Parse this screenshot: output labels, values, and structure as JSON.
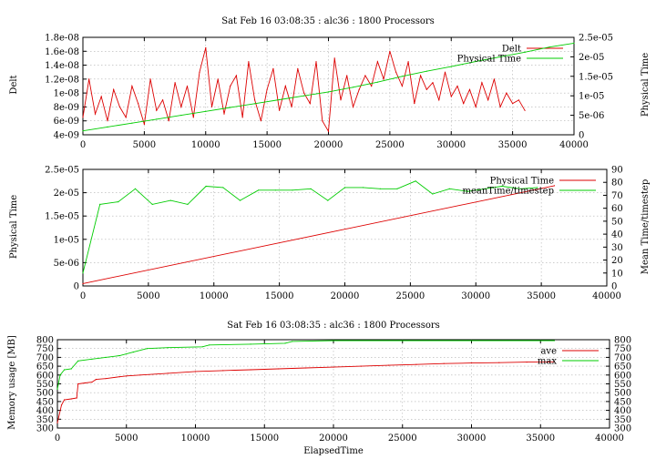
{
  "chart_data": [
    {
      "type": "line",
      "title": "Sat Feb 16 03:08:35 : alc36 : 1800 Processors",
      "ylabel": "Delt",
      "y2label": "Physical Time",
      "xlim": [
        0,
        40000
      ],
      "ylim": [
        4e-09,
        1.8e-08
      ],
      "y2lim": [
        0,
        2.5e-05
      ],
      "xticks": [
        "0",
        "5000",
        "10000",
        "15000",
        "20000",
        "25000",
        "30000",
        "35000",
        "40000"
      ],
      "yticks": [
        "4e-09",
        "6e-09",
        "8e-09",
        "1e-08",
        "1.2e-08",
        "1.4e-08",
        "1.6e-08",
        "1.8e-08"
      ],
      "y2ticks": [
        "0",
        "5e-06",
        "1e-05",
        "1.5e-05",
        "2e-05",
        "2.5e-05"
      ],
      "grid": true,
      "legend": "top-right",
      "colors": {
        "axis1": "#dd0000",
        "axis2": "#00cc00"
      },
      "series": [
        {
          "name": "Delt",
          "axis": "y",
          "color": "#dd0000",
          "x": [
            0,
            500,
            1000,
            1500,
            2000,
            2500,
            3000,
            3500,
            4000,
            4500,
            5000,
            5500,
            6000,
            6500,
            7000,
            7500,
            8000,
            8500,
            9000,
            9500,
            10000,
            10500,
            11000,
            11500,
            12000,
            12500,
            13000,
            13500,
            14000,
            14500,
            15000,
            15500,
            16000,
            16500,
            17000,
            17500,
            18000,
            18500,
            19000,
            19500,
            20000,
            20500,
            21000,
            21500,
            22000,
            22500,
            23000,
            23500,
            24000,
            24500,
            25000,
            25500,
            26000,
            26500,
            27000,
            27500,
            28000,
            28500,
            29000,
            29500,
            30000,
            30500,
            31000,
            31500,
            32000,
            32500,
            33000,
            33500,
            34000,
            34500,
            35000,
            35500,
            36000
          ],
          "y": [
            6.5e-09,
            1.2e-08,
            7e-09,
            9.5e-09,
            6e-09,
            1.05e-08,
            8e-09,
            6.5e-09,
            1.1e-08,
            8.5e-09,
            5.5e-09,
            1.2e-08,
            7.5e-09,
            9e-09,
            6e-09,
            1.15e-08,
            8e-09,
            1.1e-08,
            6.5e-09,
            1.3e-08,
            1.65e-08,
            8e-09,
            1.2e-08,
            7e-09,
            1.1e-08,
            1.25e-08,
            6.5e-09,
            1.45e-08,
            9e-09,
            6e-09,
            1.05e-08,
            1.35e-08,
            7.5e-09,
            1.1e-08,
            8e-09,
            1.35e-08,
            1e-08,
            8.5e-09,
            1.45e-08,
            6e-09,
            4.5e-09,
            1.5e-08,
            9e-09,
            1.25e-08,
            8e-09,
            1.05e-08,
            1.25e-08,
            1.1e-08,
            1.45e-08,
            1.2e-08,
            1.6e-08,
            1.3e-08,
            1.1e-08,
            1.45e-08,
            8.5e-09,
            1.25e-08,
            1.05e-08,
            1.15e-08,
            9e-09,
            1.3e-08,
            9.5e-09,
            1.1e-08,
            8.5e-09,
            1.05e-08,
            8e-09,
            1.15e-08,
            9e-09,
            1.2e-08,
            8e-09,
            1e-08,
            8.5e-09,
            9e-09,
            7.5e-09
          ]
        },
        {
          "name": "Physical Time",
          "axis": "y2",
          "color": "#00cc00",
          "x": [
            0,
            2000,
            4000,
            6000,
            8000,
            10000,
            12000,
            14000,
            16000,
            18000,
            20000,
            22000,
            24000,
            26000,
            28000,
            30000,
            32000,
            34000,
            36000,
            38000,
            40000
          ],
          "y": [
            1e-06,
            2e-06,
            3e-06,
            4e-06,
            5e-06,
            6e-06,
            7e-06,
            8e-06,
            9e-06,
            1e-05,
            1.1e-05,
            1.22e-05,
            1.35e-05,
            1.5e-05,
            1.63e-05,
            1.75e-05,
            1.88e-05,
            2e-05,
            2.12e-05,
            2.25e-05,
            2.35e-05
          ]
        }
      ]
    },
    {
      "type": "line",
      "ylabel": "Physical Time",
      "y2label": "Mean Time/timestep",
      "xlim": [
        0,
        40000
      ],
      "ylim": [
        0,
        2.5e-05
      ],
      "y2lim": [
        0,
        90
      ],
      "xticks": [
        "0",
        "5000",
        "10000",
        "15000",
        "20000",
        "25000",
        "30000",
        "35000",
        "40000"
      ],
      "yticks": [
        "0",
        "5e-06",
        "1e-05",
        "1.5e-05",
        "2e-05",
        "2.5e-05"
      ],
      "y2ticks": [
        "0",
        "10",
        "20",
        "30",
        "40",
        "50",
        "60",
        "70",
        "80",
        "90"
      ],
      "grid": true,
      "legend": "top-right",
      "colors": {
        "axis1": "#dd0000",
        "axis2": "#00cc00"
      },
      "series": [
        {
          "name": "Physical Time",
          "axis": "y",
          "color": "#dd0000",
          "x": [
            0,
            36000
          ],
          "y": [
            5e-07,
            2.15e-05
          ]
        },
        {
          "name": "meanTime/timestep",
          "axis": "y2",
          "color": "#00cc00",
          "x": [
            0,
            1300,
            2700,
            4000,
            5300,
            6700,
            8000,
            9400,
            10700,
            12000,
            13400,
            14700,
            16000,
            17400,
            18700,
            20000,
            21400,
            22700,
            24000,
            25400,
            26700,
            28000,
            29400,
            30700,
            32000,
            33400,
            34700
          ],
          "y": [
            10,
            63,
            65,
            75,
            63,
            66,
            63,
            77,
            76,
            66,
            74,
            74,
            74,
            75,
            66,
            76,
            76,
            75,
            75,
            81,
            71,
            75,
            73,
            75,
            77,
            75,
            76
          ]
        }
      ]
    },
    {
      "type": "line",
      "title": "Sat Feb 16 03:08:35 : alc36 : 1800 Processors",
      "xlabel": "ElapsedTime",
      "ylabel": "Memory usage [MB]",
      "xlim": [
        0,
        40000
      ],
      "ylim": [
        300,
        800
      ],
      "y2lim": [
        300,
        800
      ],
      "xticks": [
        "0",
        "5000",
        "10000",
        "15000",
        "20000",
        "25000",
        "30000",
        "35000",
        "40000"
      ],
      "yticks": [
        "300",
        "350",
        "400",
        "450",
        "500",
        "550",
        "600",
        "650",
        "700",
        "750",
        "800"
      ],
      "y2ticks": [
        "300",
        "350",
        "400",
        "450",
        "500",
        "550",
        "600",
        "650",
        "700",
        "750",
        "800"
      ],
      "grid": true,
      "legend": "top-right",
      "colors": {
        "axis1": "#dd0000",
        "axis2": "#00cc00"
      },
      "series": [
        {
          "name": "ave",
          "axis": "y",
          "color": "#dd0000",
          "x": [
            0,
            300,
            500,
            1000,
            1400,
            1500,
            2000,
            2500,
            2800,
            3500,
            4500,
            5000,
            6000,
            8000,
            10000,
            12000,
            14000,
            16000,
            18000,
            20000,
            22000,
            24000,
            26000,
            28000,
            30000,
            32000,
            34000,
            36000
          ],
          "y": [
            330,
            430,
            460,
            465,
            470,
            550,
            555,
            560,
            575,
            580,
            590,
            595,
            600,
            610,
            620,
            625,
            630,
            635,
            640,
            645,
            650,
            655,
            660,
            665,
            668,
            670,
            673,
            675
          ]
        },
        {
          "name": "max",
          "axis": "y2",
          "color": "#00cc00",
          "x": [
            0,
            200,
            500,
            1000,
            1500,
            2500,
            3500,
            4500,
            5500,
            6500,
            8000,
            10500,
            11000,
            14000,
            16500,
            17000,
            20000,
            25000,
            30000,
            36000
          ],
          "y": [
            520,
            600,
            630,
            635,
            680,
            690,
            700,
            710,
            730,
            750,
            755,
            760,
            770,
            775,
            780,
            790,
            795,
            795,
            795,
            795
          ]
        }
      ]
    }
  ]
}
